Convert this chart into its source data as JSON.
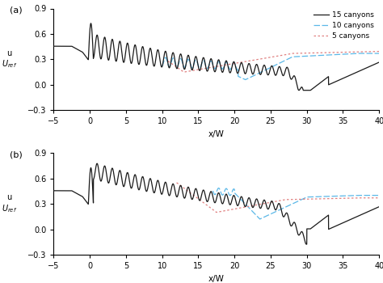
{
  "xlim": [
    -5,
    40
  ],
  "ylim": [
    -0.3,
    0.9
  ],
  "yticks": [
    -0.3,
    0,
    0.3,
    0.6,
    0.9
  ],
  "xticks": [
    -5,
    0,
    5,
    10,
    15,
    20,
    25,
    30,
    35,
    40
  ],
  "xlabel": "x/W",
  "color_15": "#1a1a1a",
  "color_10": "#5bb8e8",
  "color_5": "#e08080",
  "legend_labels": [
    "15 canyons",
    "10 canyons",
    "5 canyons"
  ],
  "panel_labels": [
    "(a)",
    "(b)"
  ],
  "canyon_period": 1.05,
  "osc_phase": 1.8
}
